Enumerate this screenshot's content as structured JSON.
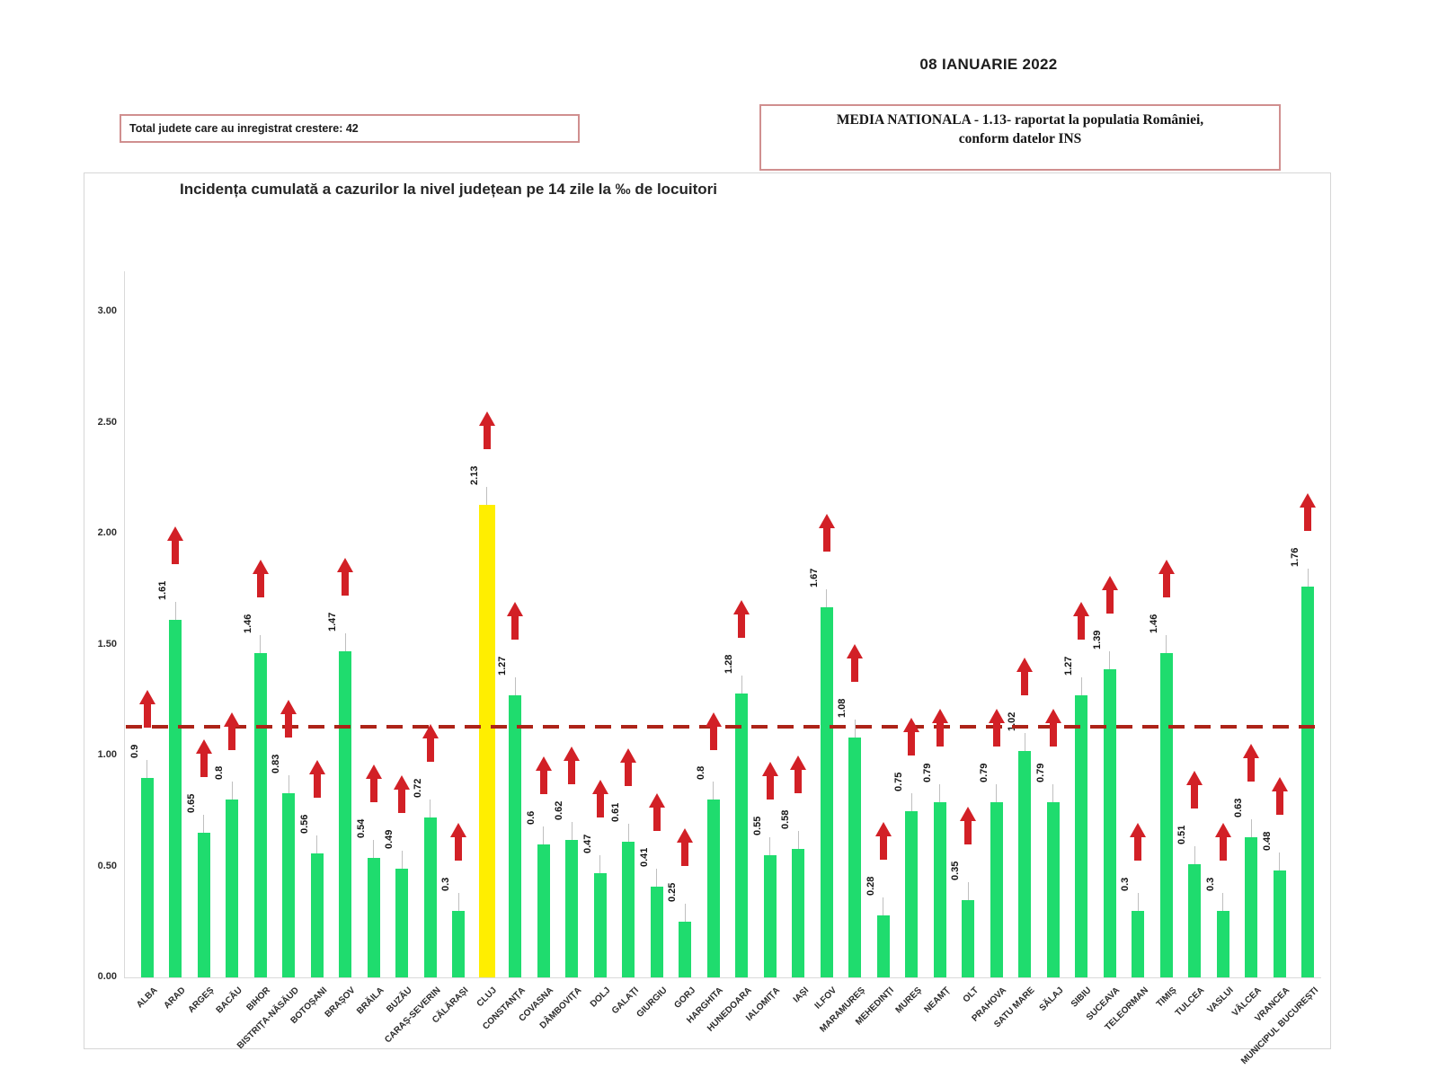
{
  "header": {
    "date": "08 IANUARIE 2022",
    "total_box": "Total judete care au inregistrat crestere: 42",
    "media_line1": "MEDIA NATIONALA - 1.13-  raportat la populatia  României,",
    "media_line2": "conform datelor INS"
  },
  "chart_data": {
    "type": "bar",
    "title": "Incidența cumulată a cazurilor la nivel județean pe 14 zile la ‰ de locuitori",
    "categories": [
      "ALBA",
      "ARAD",
      "ARGEȘ",
      "BACĂU",
      "BIHOR",
      "BISTRIȚA-NĂSĂUD",
      "BOTOȘANI",
      "BRAȘOV",
      "BRĂILA",
      "BUZĂU",
      "CARAȘ-SEVERIN",
      "CĂLĂRAȘI",
      "CLUJ",
      "CONSTANȚA",
      "COVASNA",
      "DÂMBOVIȚA",
      "DOLJ",
      "GALAȚI",
      "GIURGIU",
      "GORJ",
      "HARGHITA",
      "HUNEDOARA",
      "IALOMIȚA",
      "IAȘI",
      "ILFOV",
      "MARAMUREȘ",
      "MEHEDINȚI",
      "MUREȘ",
      "NEAMȚ",
      "OLT",
      "PRAHOVA",
      "SATU MARE",
      "SĂLAJ",
      "SIBIU",
      "SUCEAVA",
      "TELEORMAN",
      "TIMIȘ",
      "TULCEA",
      "VASLUI",
      "VÂLCEA",
      "VRANCEA",
      "MUNICIPUL BUCUREȘTI"
    ],
    "values": [
      0.9,
      1.61,
      0.65,
      0.8,
      1.46,
      0.83,
      0.56,
      1.47,
      0.54,
      0.49,
      0.72,
      0.3,
      2.13,
      1.27,
      0.6,
      0.62,
      0.47,
      0.61,
      0.41,
      0.25,
      0.8,
      1.28,
      0.55,
      0.58,
      1.67,
      1.08,
      0.28,
      0.75,
      0.79,
      0.35,
      0.79,
      1.02,
      0.79,
      1.27,
      1.39,
      0.3,
      1.46,
      0.51,
      0.3,
      0.63,
      0.48,
      1.76
    ],
    "highlight_category": "CLUJ",
    "highlight_value": 2.13,
    "national_average": 1.13,
    "arrow_direction": "up",
    "yticks": [
      "3.00",
      "2.50",
      "2.00",
      "1.50",
      "1.00",
      "0.50",
      "0.00"
    ],
    "ylim": [
      0,
      3.0
    ],
    "xlabel": "",
    "ylabel": "",
    "grid": false,
    "legend": false,
    "colors": {
      "bar": "#1fdc6e",
      "highlight_bar": "#ffee00",
      "arrow": "#d22026",
      "average_line": "#ad2318"
    }
  }
}
